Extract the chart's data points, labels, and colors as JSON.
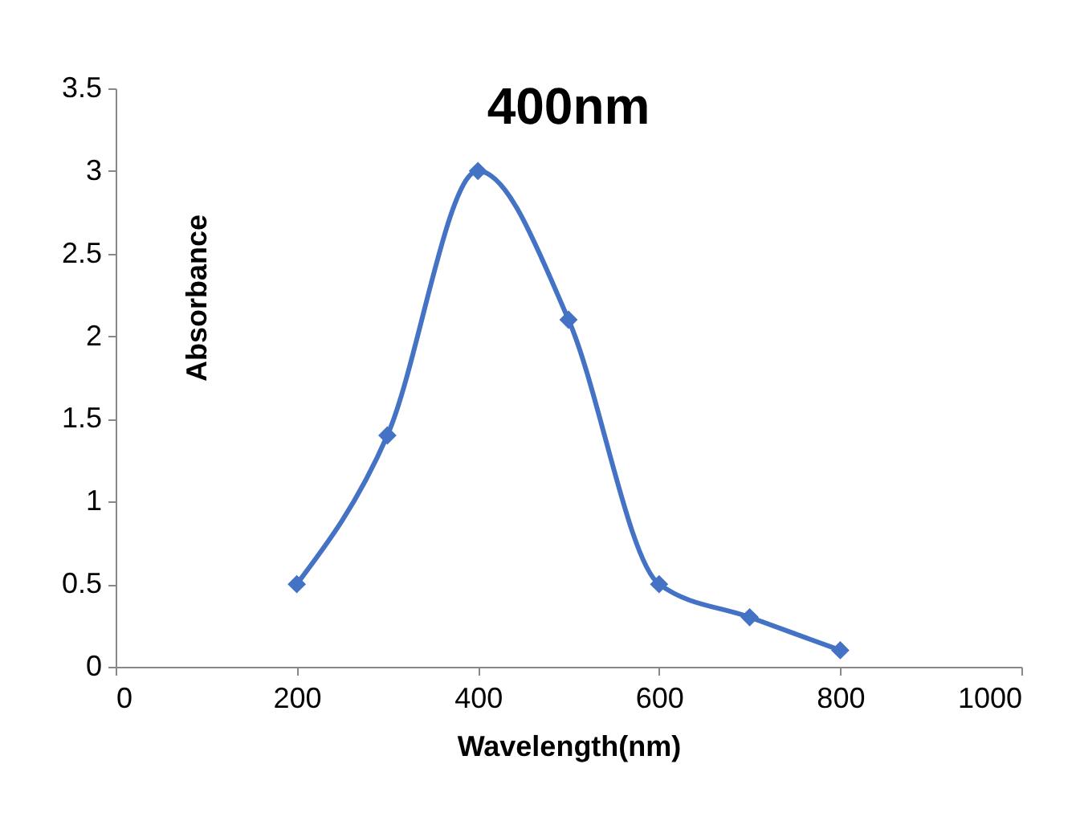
{
  "chart_data": {
    "type": "line",
    "title": "400nm",
    "xlabel": "Wavelength(nm)",
    "ylabel": "Absorbance",
    "x": [
      200,
      300,
      400,
      500,
      600,
      700,
      800
    ],
    "series": [
      {
        "color": "#4472c4",
        "values": [
          0.5,
          1.4,
          3,
          2.1,
          0.5,
          0.3,
          0.1
        ]
      }
    ],
    "xlim": [
      0,
      1000
    ],
    "xticks": [
      0,
      200,
      400,
      600,
      800,
      1000
    ],
    "ylim": [
      0,
      3.5
    ],
    "yticks": [
      0,
      0.5,
      1,
      1.5,
      2,
      2.5,
      3,
      3.5
    ],
    "grid": false,
    "legend": false,
    "marker": "diamond",
    "line_style": "solid"
  }
}
